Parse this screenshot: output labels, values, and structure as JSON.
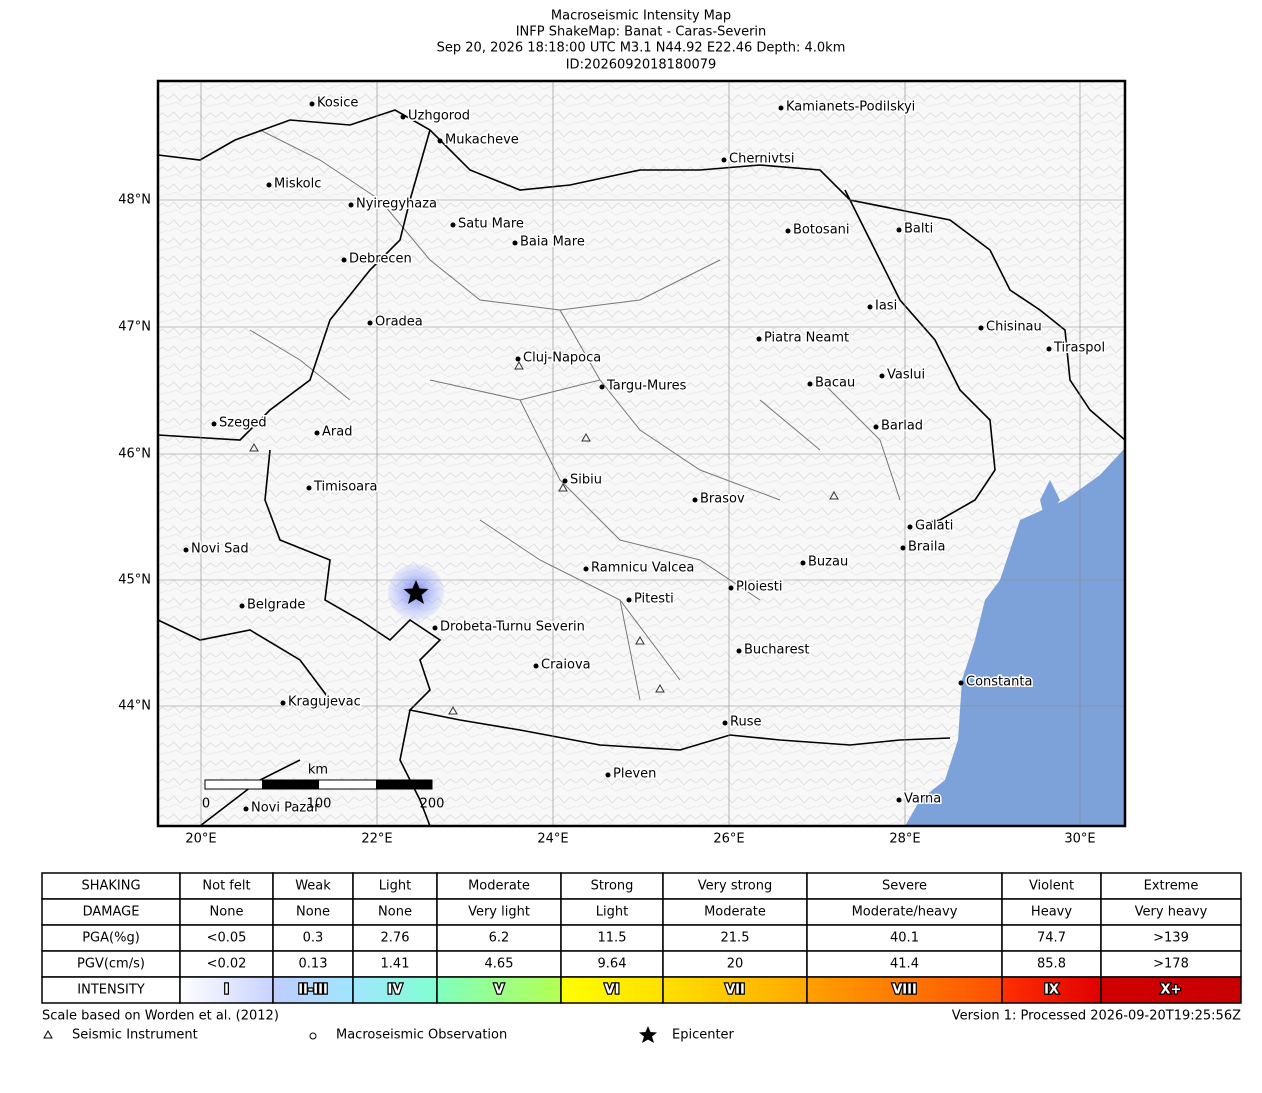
{
  "title": [
    "Macroseismic Intensity Map",
    "INFP ShakeMap: Banat - Caras-Severin",
    "Sep 20, 2026 18:18:00 UTC M3.1 N44.92 E22.46 Depth: 4.0km",
    "ID:2026092018180079"
  ],
  "map": {
    "lat_labels": [
      "48°N",
      "47°N",
      "46°N",
      "45°N",
      "44°N"
    ],
    "lon_labels": [
      "20°E",
      "22°E",
      "24°E",
      "26°E",
      "28°E",
      "30°E"
    ],
    "cities": [
      "Kosice",
      "Uzhgorod",
      "Mukacheve",
      "Kamianets-Podilskyi",
      "Chernivtsi",
      "Miskolc",
      "Nyiregyhaza",
      "Satu Mare",
      "Baia Mare",
      "Botosani",
      "Balti",
      "Debrecen",
      "Iasi",
      "Oradea",
      "Chisinau",
      "Piatra Neamt",
      "Tiraspol",
      "Cluj-Napoca",
      "Targu-Mures",
      "Bacau",
      "Vaslui",
      "Szeged",
      "Arad",
      "Barlad",
      "Sibiu",
      "Timisoara",
      "Brasov",
      "Galati",
      "Novi Sad",
      "Braila",
      "Buzau",
      "Ramnicu Valcea",
      "Ploiesti",
      "Pitesti",
      "Belgrade",
      "Drobeta-Turnu Severin",
      "Bucharest",
      "Craiova",
      "Constanta",
      "Kragujevac",
      "Ruse",
      "Pleven",
      "Varna",
      "Novi Pazar"
    ],
    "scale_bar": {
      "unit": "km",
      "labels": [
        "0",
        "100",
        "200"
      ]
    }
  },
  "legend_table": {
    "rows": [
      [
        "SHAKING",
        "Not felt",
        "Weak",
        "Light",
        "Moderate",
        "Strong",
        "Very strong",
        "Severe",
        "Violent",
        "Extreme"
      ],
      [
        "DAMAGE",
        "None",
        "None",
        "None",
        "Very light",
        "Light",
        "Moderate",
        "Moderate/heavy",
        "Heavy",
        "Very heavy"
      ],
      [
        "PGA(%g)",
        "<0.05",
        "0.3",
        "2.76",
        "6.2",
        "11.5",
        "21.5",
        "40.1",
        "74.7",
        ">139"
      ],
      [
        "PGV(cm/s)",
        "<0.02",
        "0.13",
        "1.41",
        "4.65",
        "9.64",
        "20",
        "41.4",
        "85.8",
        ">178"
      ],
      [
        "INTENSITY",
        "I",
        "II-III",
        "IV",
        "V",
        "VI",
        "VII",
        "VIII",
        "IX",
        "X+"
      ]
    ]
  },
  "footer": {
    "left": "Scale based on Worden et al. (2012)",
    "right": "Version 1: Processed 2026-09-20T19:25:56Z"
  },
  "symbols": [
    "Seismic Instrument",
    "Macroseismic Observation",
    "Epicenter"
  ]
}
